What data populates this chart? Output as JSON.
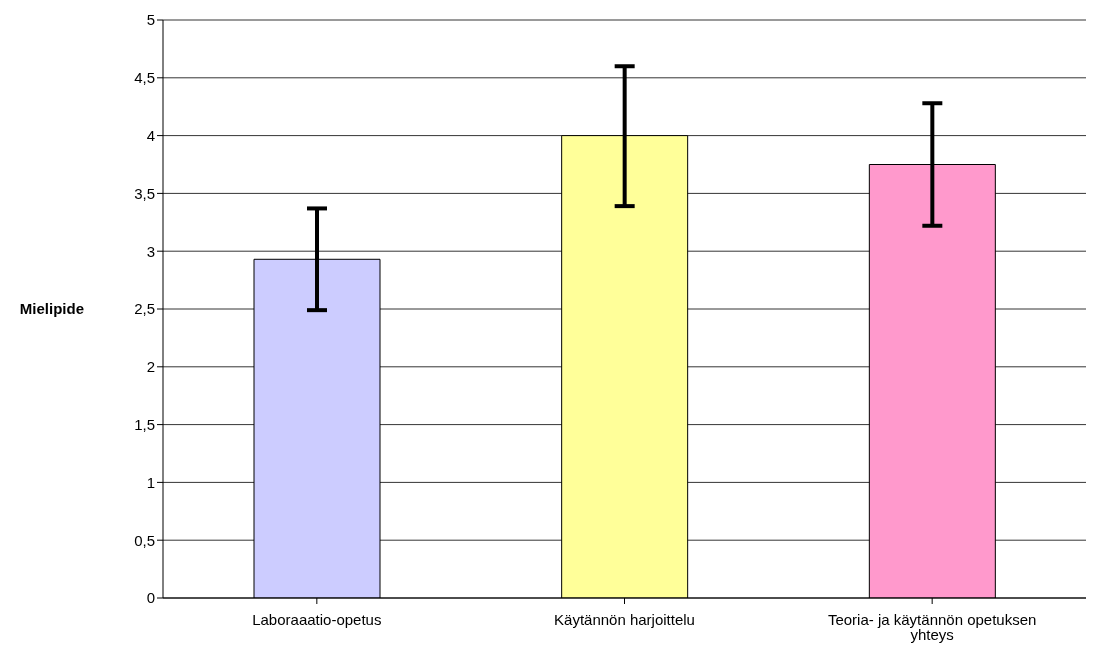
{
  "chart_data": {
    "type": "bar",
    "ylabel": "Mielipide",
    "categories": [
      "Laboraaatio-opetus",
      "Käytännön harjoittelu",
      "Teoria- ja käytännön opetuksen yhteys"
    ],
    "values": [
      2.93,
      4.0,
      3.75
    ],
    "colors": [
      "#ccccff",
      "#ffff99",
      "#ff99cc"
    ],
    "errors": [
      [
        2.49,
        3.37
      ],
      [
        3.39,
        4.6
      ],
      [
        3.22,
        4.28
      ]
    ],
    "ylim": [
      0,
      5
    ],
    "yticks": [
      0,
      {
        "value": 0.5,
        "label": "0,5"
      },
      1,
      {
        "value": 1.5,
        "label": "1,5"
      },
      2,
      {
        "value": 2.5,
        "label": "2,5"
      },
      3,
      {
        "value": 3.5,
        "label": "3,5"
      },
      4,
      {
        "value": 4.5,
        "label": "4,5"
      },
      5
    ],
    "grid": "y"
  }
}
